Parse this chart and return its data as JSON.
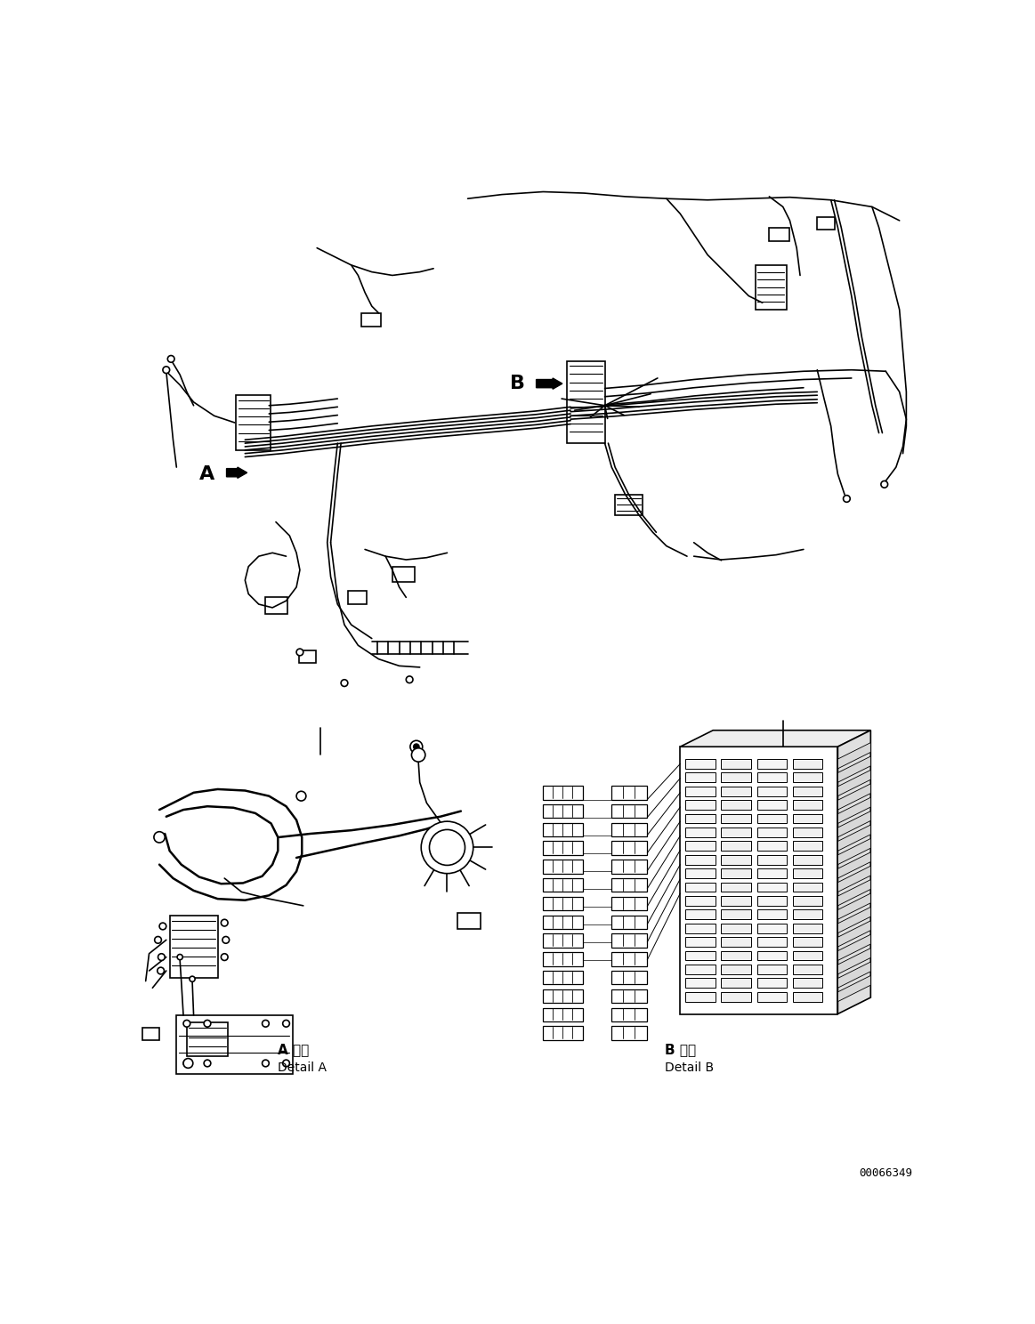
{
  "background_color": "#ffffff",
  "line_color": "#000000",
  "fig_width": 11.63,
  "fig_height": 14.88,
  "dpi": 100,
  "detail_A_jp": "A 詳細",
  "detail_A_en": "Detail A",
  "detail_B_jp": "B 詳細",
  "detail_B_en": "Detail B",
  "part_number": "00066349",
  "label_A": "A",
  "label_B": "B"
}
